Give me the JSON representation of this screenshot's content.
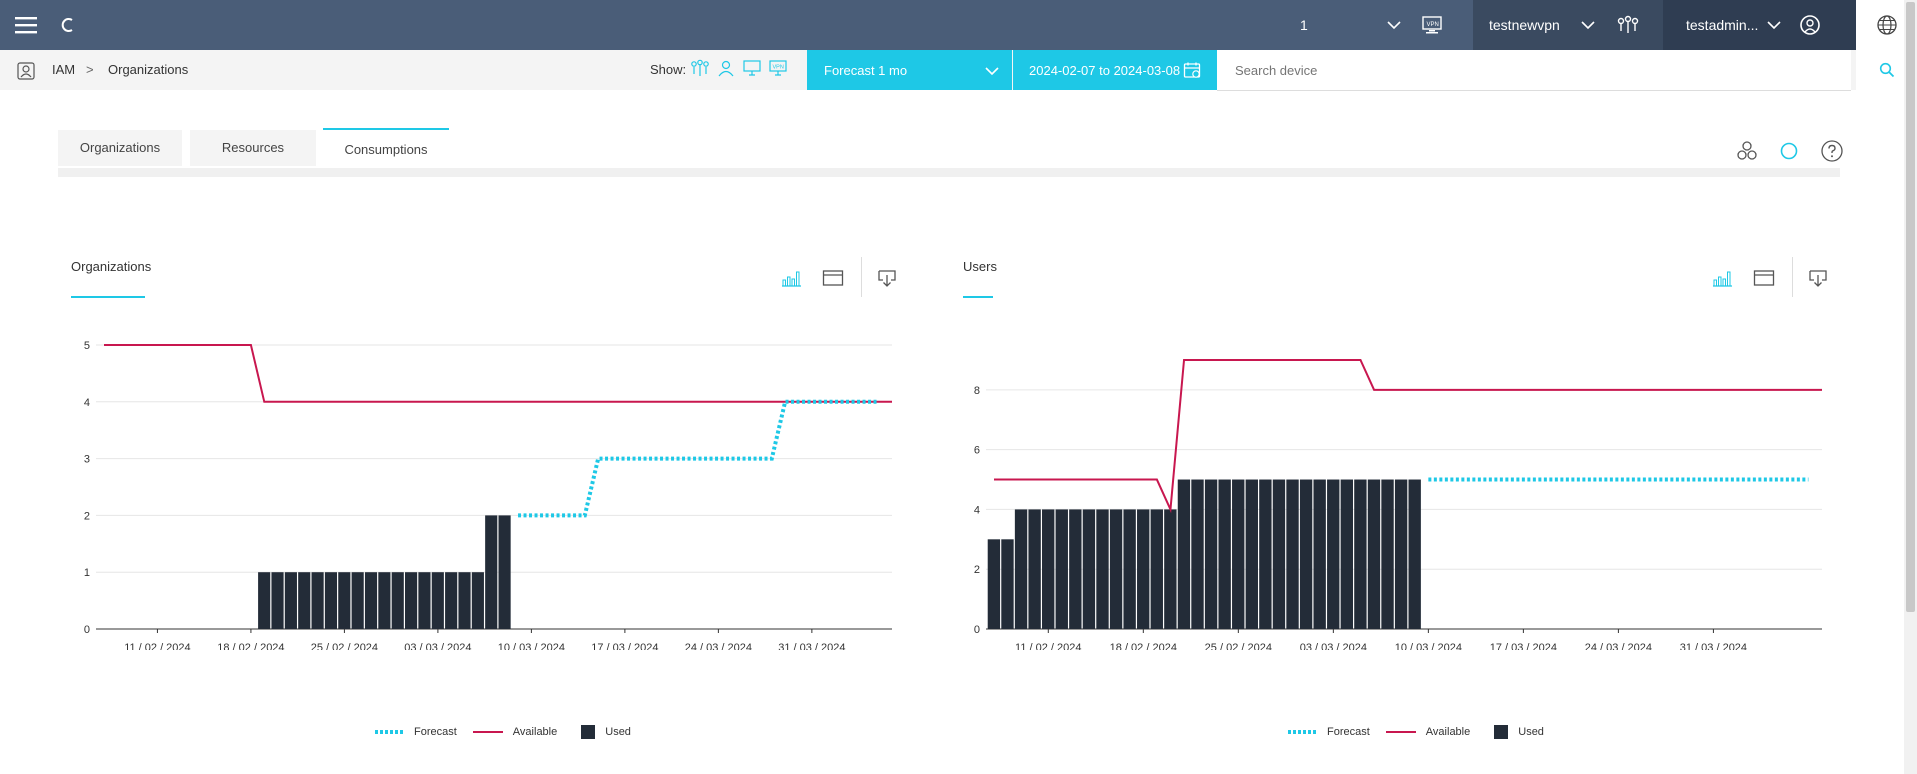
{
  "topbar": {
    "counter": "1",
    "vpn_name": "testnewvpn",
    "user_name": "testadmin...",
    "bg_color": "#4a5d78"
  },
  "breadcrumb": {
    "root": "IAM",
    "separator": ">",
    "current": "Organizations"
  },
  "toolbar": {
    "show_label": "Show:",
    "show_icons": [
      "org-icon",
      "user-icon",
      "device-icon",
      "vpn-icon"
    ],
    "forecast_selected": "Forecast 1 mo",
    "date_range": "2024-02-07 to 2024-03-08",
    "search_placeholder": "Search device",
    "accent": "#1ec8e6"
  },
  "tabs": [
    {
      "label": "Organizations",
      "active": false
    },
    {
      "label": "Resources",
      "active": false
    },
    {
      "label": "Consumptions",
      "active": true
    }
  ],
  "legend": {
    "forecast": "Forecast",
    "available": "Available",
    "used": "Used"
  },
  "colors": {
    "forecast": "#1ec8e6",
    "available": "#c8174f",
    "used": "#232c38"
  },
  "chart_data": [
    {
      "type": "bar",
      "title": "Organizations",
      "x_tick_labels": [
        "11 / 02 / 2024",
        "18 / 02 / 2024",
        "25 / 02 / 2024",
        "03 / 03 / 2024",
        "10 / 03 / 2024",
        "17 / 03 / 2024",
        "24 / 03 / 2024",
        "31 / 03 / 2024"
      ],
      "x_range": [
        "2024-02-07",
        "2024-04-06"
      ],
      "y_ticks": [
        0,
        1,
        2,
        3,
        4,
        5
      ],
      "ylim": [
        0,
        5
      ],
      "grid": true,
      "legend_position": "bottom",
      "series": [
        {
          "name": "Used",
          "type": "bar",
          "points": [
            [
              "2024-02-19",
              1
            ],
            [
              "2024-02-20",
              1
            ],
            [
              "2024-02-21",
              1
            ],
            [
              "2024-02-22",
              1
            ],
            [
              "2024-02-23",
              1
            ],
            [
              "2024-02-24",
              1
            ],
            [
              "2024-02-25",
              1
            ],
            [
              "2024-02-26",
              1
            ],
            [
              "2024-02-27",
              1
            ],
            [
              "2024-02-28",
              1
            ],
            [
              "2024-02-29",
              1
            ],
            [
              "2024-03-01",
              1
            ],
            [
              "2024-03-02",
              1
            ],
            [
              "2024-03-03",
              1
            ],
            [
              "2024-03-04",
              1
            ],
            [
              "2024-03-05",
              1
            ],
            [
              "2024-03-06",
              1
            ],
            [
              "2024-03-07",
              2
            ],
            [
              "2024-03-08",
              2
            ]
          ]
        },
        {
          "name": "Available",
          "type": "line",
          "points": [
            [
              "2024-02-07",
              5
            ],
            [
              "2024-02-18",
              5
            ],
            [
              "2024-02-19",
              4
            ],
            [
              "2024-04-06",
              4
            ]
          ]
        },
        {
          "name": "Forecast",
          "type": "line",
          "points": [
            [
              "2024-03-09",
              2
            ],
            [
              "2024-03-14",
              2
            ],
            [
              "2024-03-15",
              3
            ],
            [
              "2024-03-28",
              3
            ],
            [
              "2024-03-29",
              4
            ],
            [
              "2024-04-05",
              4
            ]
          ]
        }
      ]
    },
    {
      "type": "bar",
      "title": "Users",
      "x_tick_labels": [
        "11 / 02 / 2024",
        "18 / 02 / 2024",
        "25 / 02 / 2024",
        "03 / 03 / 2024",
        "10 / 03 / 2024",
        "17 / 03 / 2024",
        "24 / 03 / 2024",
        "31 / 03 / 2024"
      ],
      "x_range": [
        "2024-02-07",
        "2024-04-08"
      ],
      "y_ticks": [
        0,
        2,
        4,
        6,
        8
      ],
      "ylim": [
        0,
        9.5
      ],
      "grid": true,
      "legend_position": "bottom",
      "series": [
        {
          "name": "Used",
          "type": "bar",
          "points": [
            [
              "2024-02-07",
              3
            ],
            [
              "2024-02-08",
              3
            ],
            [
              "2024-02-09",
              4
            ],
            [
              "2024-02-10",
              4
            ],
            [
              "2024-02-11",
              4
            ],
            [
              "2024-02-12",
              4
            ],
            [
              "2024-02-13",
              4
            ],
            [
              "2024-02-14",
              4
            ],
            [
              "2024-02-15",
              4
            ],
            [
              "2024-02-16",
              4
            ],
            [
              "2024-02-17",
              4
            ],
            [
              "2024-02-18",
              4
            ],
            [
              "2024-02-19",
              4
            ],
            [
              "2024-02-20",
              4
            ],
            [
              "2024-02-21",
              5
            ],
            [
              "2024-02-22",
              5
            ],
            [
              "2024-02-23",
              5
            ],
            [
              "2024-02-24",
              5
            ],
            [
              "2024-02-25",
              5
            ],
            [
              "2024-02-26",
              5
            ],
            [
              "2024-02-27",
              5
            ],
            [
              "2024-02-28",
              5
            ],
            [
              "2024-02-29",
              5
            ],
            [
              "2024-03-01",
              5
            ],
            [
              "2024-03-02",
              5
            ],
            [
              "2024-03-03",
              5
            ],
            [
              "2024-03-04",
              5
            ],
            [
              "2024-03-05",
              5
            ],
            [
              "2024-03-06",
              5
            ],
            [
              "2024-03-07",
              5
            ],
            [
              "2024-03-08",
              5
            ],
            [
              "2024-03-09",
              5
            ]
          ]
        },
        {
          "name": "Available",
          "type": "line",
          "points": [
            [
              "2024-02-07",
              5
            ],
            [
              "2024-02-19",
              5
            ],
            [
              "2024-02-20",
              4
            ],
            [
              "2024-02-21",
              9
            ],
            [
              "2024-03-05",
              9
            ],
            [
              "2024-03-06",
              8
            ],
            [
              "2024-04-08",
              8
            ]
          ]
        },
        {
          "name": "Forecast",
          "type": "line",
          "points": [
            [
              "2024-03-10",
              5
            ],
            [
              "2024-04-07",
              5
            ]
          ]
        }
      ]
    }
  ]
}
